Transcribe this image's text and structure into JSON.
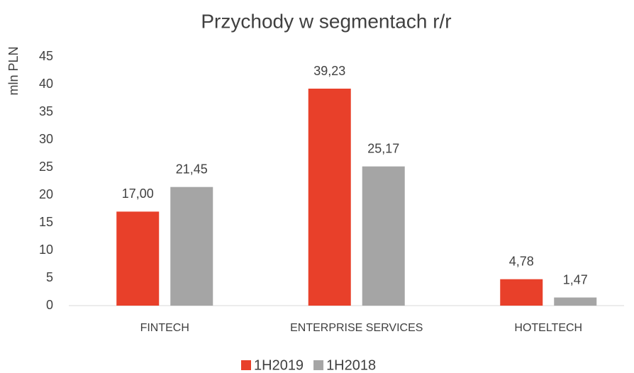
{
  "chart_data": {
    "type": "bar",
    "title": "Przychody w segmentach r/r",
    "y_label": "mln PLN",
    "categories": [
      "FINTECH",
      "ENTERPRISE SERVICES",
      "HOTELTECH"
    ],
    "series": [
      {
        "name": "1H2019",
        "color": "#e8402a",
        "values": [
          17.0,
          39.23,
          4.78
        ],
        "value_labels": [
          "17,00",
          "39,23",
          "4,78"
        ]
      },
      {
        "name": "1H2018",
        "color": "#a5a5a5",
        "values": [
          21.45,
          25.17,
          1.47
        ],
        "value_labels": [
          "21,45",
          "25,17",
          "1,47"
        ]
      }
    ],
    "ylim": [
      0,
      45
    ],
    "yticks": [
      0,
      5,
      10,
      15,
      20,
      25,
      30,
      35,
      40,
      45
    ],
    "grid": false,
    "legend": "bottom"
  }
}
